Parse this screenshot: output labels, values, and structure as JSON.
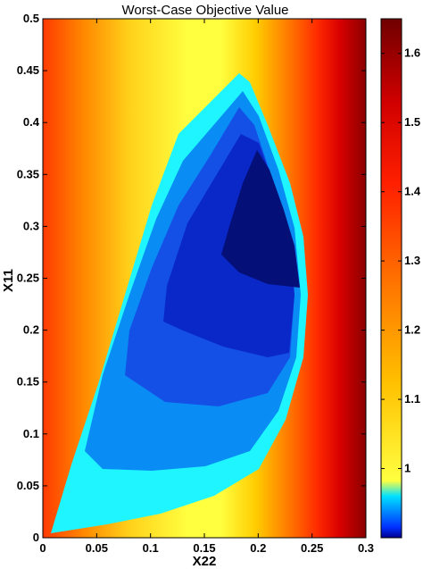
{
  "chart_data": {
    "type": "heatmap",
    "title": "Worst-Case Objective Value",
    "xlabel": "X22",
    "ylabel": "X11",
    "xlim": [
      0,
      0.3
    ],
    "ylim": [
      0,
      0.5
    ],
    "x_ticks": [
      "0",
      "0.05",
      "0.1",
      "0.15",
      "0.2",
      "0.25",
      "0.3"
    ],
    "y_ticks": [
      "0",
      "0.05",
      "0.1",
      "0.15",
      "0.2",
      "0.25",
      "0.3",
      "0.35",
      "0.4",
      "0.45",
      "0.5"
    ],
    "colorbar": {
      "range": [
        0.9,
        1.65
      ],
      "ticks": [
        "1",
        "1.1",
        "1.2",
        "1.3",
        "1.4",
        "1.5",
        "1.6"
      ]
    },
    "feasible_region_levels": [
      {
        "level": 0.99,
        "color": "#1ef5ff"
      },
      {
        "level": 0.97,
        "color": "#0a8cf5"
      },
      {
        "level": 0.95,
        "color": "#1450e6"
      },
      {
        "level": 0.93,
        "color": "#0a28c8"
      },
      {
        "level": 0.91,
        "color": "#040f78"
      }
    ],
    "outside_gradient_colors": [
      "#ffff33",
      "#ffb400",
      "#ff3c00",
      "#c80000",
      "#780000"
    ],
    "grid": false,
    "colormap": "jet-like"
  }
}
